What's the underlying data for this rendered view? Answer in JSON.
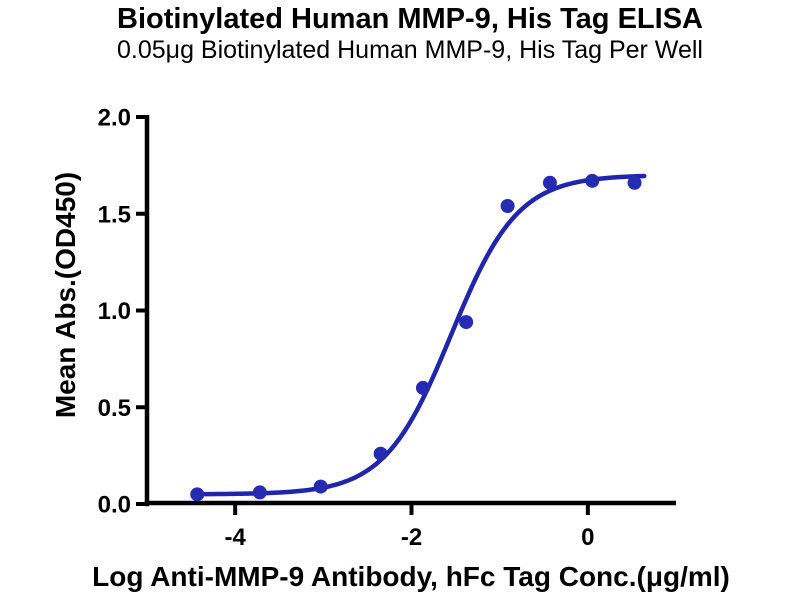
{
  "figure": {
    "title": "Biotinylated Human MMP-9, His Tag ELISA",
    "subtitle": "0.05μg Biotinylated Human MMP-9, His Tag Per Well"
  },
  "chart_data": {
    "type": "scatter",
    "title": "Biotinylated Human MMP-9, His Tag ELISA",
    "subtitle": "0.05μg Biotinylated Human MMP-9, His Tag Per Well",
    "xlabel": "Log Anti-MMP-9 Antibody, hFc Tag Conc.(μg/ml)",
    "ylabel": "Mean Abs.(OD450)",
    "xlim": [
      -5,
      1
    ],
    "ylim": [
      0,
      2
    ],
    "x_ticks": [
      {
        "value": -4,
        "label": "-4"
      },
      {
        "value": -2,
        "label": "-2"
      },
      {
        "value": 0,
        "label": "0"
      }
    ],
    "y_ticks": [
      {
        "value": 0.0,
        "label": "0.0"
      },
      {
        "value": 0.5,
        "label": "0.5"
      },
      {
        "value": 1.0,
        "label": "1.0"
      },
      {
        "value": 1.5,
        "label": "1.5"
      },
      {
        "value": 2.0,
        "label": "2.0"
      }
    ],
    "grid": false,
    "legend": "none",
    "series": [
      {
        "name": "Anti-MMP-9 Antibody, hFc Tag",
        "marker": "circle",
        "color": "#252CB2",
        "points": [
          {
            "log_conc": -4.43,
            "od450": 0.05
          },
          {
            "log_conc": -3.72,
            "od450": 0.06
          },
          {
            "log_conc": -3.03,
            "od450": 0.09
          },
          {
            "log_conc": -2.35,
            "od450": 0.26
          },
          {
            "log_conc": -1.87,
            "od450": 0.6
          },
          {
            "log_conc": -1.38,
            "od450": 0.94
          },
          {
            "log_conc": -0.91,
            "od450": 1.54
          },
          {
            "log_conc": -0.43,
            "od450": 1.66
          },
          {
            "log_conc": 0.05,
            "od450": 1.67
          },
          {
            "log_conc": 0.53,
            "od450": 1.66
          }
        ]
      }
    ],
    "fit_curve": {
      "model": "4PL sigmoid",
      "bottom": 0.05,
      "top": 1.7,
      "log_ec50": -1.55,
      "hill_slope": 1.15,
      "x_start": -4.43,
      "x_end": 0.65,
      "color": "#1F25AD"
    },
    "colors": {
      "axis": "#000000",
      "text": "#000000"
    }
  }
}
